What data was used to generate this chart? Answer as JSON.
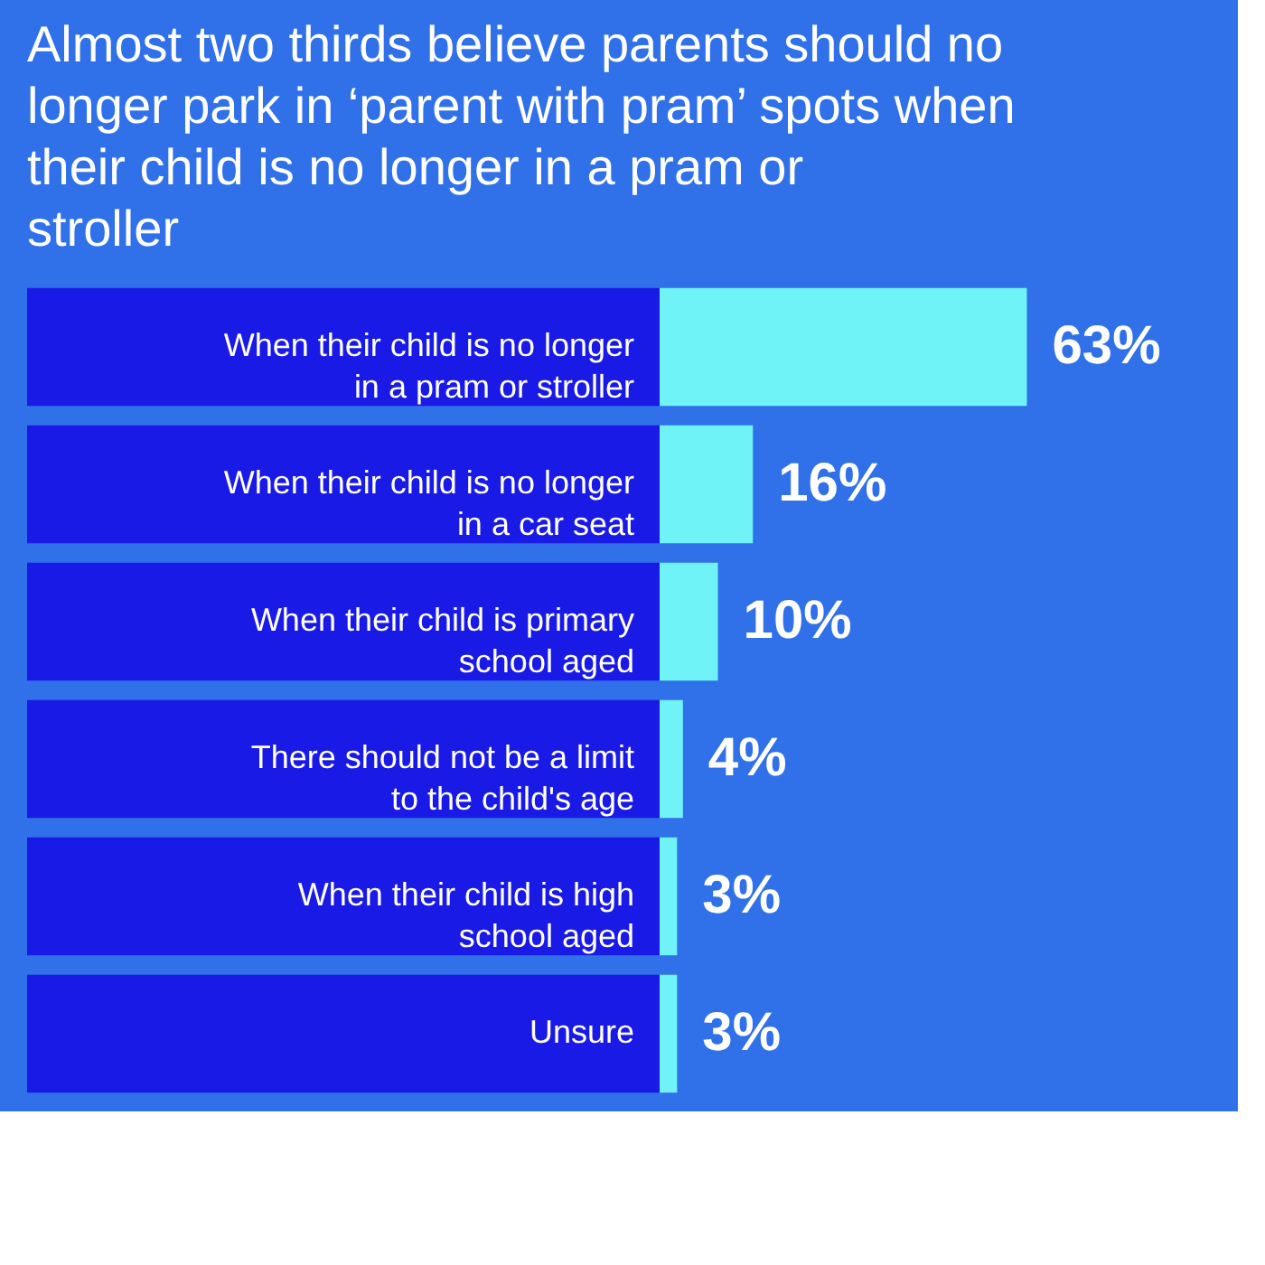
{
  "chart_data": {
    "type": "bar",
    "orientation": "horizontal",
    "title": "Almost two thirds believe parents should no longer park in ‘parent with pram’ spots when their child is no longer in a pram or stroller",
    "categories": [
      "When their child is no longer in a pram or stroller",
      "When their child is no longer in a car seat",
      "When their child is primary school aged",
      "There should not be a limit to the child's age",
      "When their child is high school aged",
      "Unsure"
    ],
    "values": [
      63,
      16,
      10,
      4,
      3,
      3
    ],
    "value_labels": [
      "63%",
      "16%",
      "10%",
      "4%",
      "3%",
      "3%"
    ],
    "color": "#6ff3f7"
  }
}
